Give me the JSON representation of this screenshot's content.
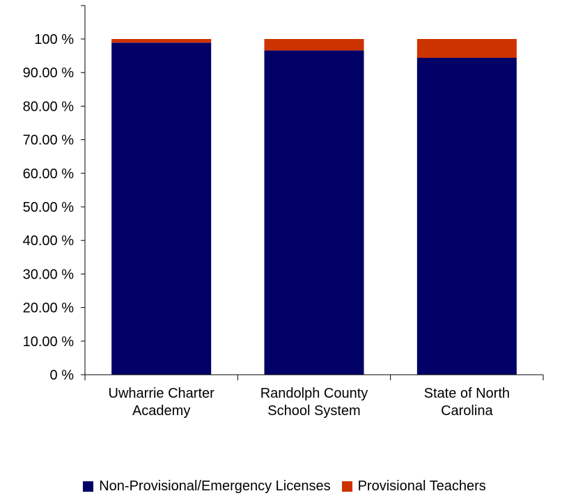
{
  "chart_data": {
    "type": "bar",
    "stacked": true,
    "categories": [
      [
        "Uwharrie Charter",
        "Academy"
      ],
      [
        "Randolph County",
        "School System"
      ],
      [
        "State of North",
        "Carolina"
      ]
    ],
    "series": [
      {
        "name": "Non-Provisional/Emergency Licenses",
        "color": "#000066",
        "values": [
          98.9,
          96.6,
          94.4
        ]
      },
      {
        "name": "Provisional Teachers",
        "color": "#CC3300",
        "values": [
          1.1,
          3.4,
          5.6
        ]
      }
    ],
    "ylim": [
      0,
      100
    ],
    "yticks": [
      {
        "value": 0,
        "label": "0 %"
      },
      {
        "value": 10,
        "label": "10.00 %"
      },
      {
        "value": 20,
        "label": "20.00 %"
      },
      {
        "value": 30,
        "label": "30.00 %"
      },
      {
        "value": 40,
        "label": "40.00 %"
      },
      {
        "value": 50,
        "label": "50.00 %"
      },
      {
        "value": 60,
        "label": "60.00 %"
      },
      {
        "value": 70,
        "label": "70.00 %"
      },
      {
        "value": 80,
        "label": "80.00 %"
      },
      {
        "value": 90,
        "label": "90.00 %"
      },
      {
        "value": 100,
        "label": "100 %"
      }
    ],
    "grid": false,
    "legend_position": "bottom"
  }
}
